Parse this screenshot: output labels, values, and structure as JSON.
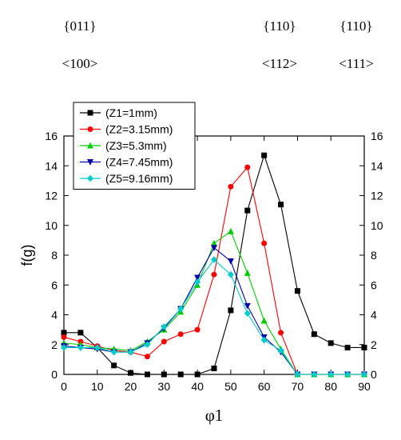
{
  "annotations": {
    "top_row": [
      "{011}",
      "{110}",
      "{110}"
    ],
    "bottom_row": [
      "<100>",
      "<112>",
      "<111>"
    ]
  },
  "chart_data": {
    "type": "line",
    "title": "",
    "xlabel": "φ1",
    "ylabel": "f(g)",
    "xlim": [
      0,
      90
    ],
    "ylim": [
      0,
      16
    ],
    "xticks": [
      "0",
      "10",
      "20",
      "30",
      "40",
      "50",
      "60",
      "70",
      "80",
      "90"
    ],
    "yticks": [
      "0",
      "2",
      "4",
      "6",
      "8",
      "10",
      "12",
      "14",
      "16"
    ],
    "grid": false,
    "legend_position": "top-left",
    "x": [
      0,
      5,
      10,
      15,
      20,
      25,
      30,
      35,
      40,
      45,
      50,
      55,
      60,
      65,
      70,
      75,
      80,
      85,
      90
    ],
    "series": [
      {
        "name": "(Z1=1mm)",
        "color": "#000000",
        "marker": "square",
        "values": [
          2.8,
          2.8,
          1.8,
          0.6,
          0.1,
          0,
          0,
          0,
          0,
          0.4,
          4.3,
          11.0,
          14.7,
          11.4,
          5.6,
          2.7,
          2.1,
          1.8,
          1.8
        ]
      },
      {
        "name": "(Z2=3.15mm)",
        "color": "#ff0000",
        "marker": "circle",
        "values": [
          2.5,
          2.2,
          1.9,
          1.6,
          1.5,
          1.2,
          2.2,
          2.7,
          3.0,
          6.7,
          12.6,
          13.9,
          8.8,
          2.8,
          0,
          0,
          0,
          0,
          0
        ]
      },
      {
        "name": "(Z3=5.3mm)",
        "color": "#00cc00",
        "marker": "triangle-up",
        "values": [
          2.1,
          2.0,
          1.8,
          1.7,
          1.6,
          2.2,
          3.0,
          4.2,
          6.0,
          8.8,
          9.6,
          6.8,
          3.6,
          1.7,
          0,
          0,
          0,
          0,
          0
        ]
      },
      {
        "name": "(Z4=7.45mm)",
        "color": "#0000aa",
        "marker": "triangle-down",
        "values": [
          1.9,
          1.8,
          1.7,
          1.5,
          1.5,
          2.1,
          3.1,
          4.4,
          6.5,
          8.5,
          7.6,
          4.6,
          2.5,
          1.5,
          0,
          0,
          0,
          0,
          0
        ]
      },
      {
        "name": "(Z5=9.16mm)",
        "color": "#00cccc",
        "marker": "diamond",
        "values": [
          1.8,
          1.8,
          1.8,
          1.5,
          1.5,
          2.0,
          3.2,
          4.4,
          6.2,
          7.7,
          6.7,
          4.1,
          2.3,
          1.6,
          0,
          0,
          0,
          0,
          0
        ]
      }
    ]
  }
}
